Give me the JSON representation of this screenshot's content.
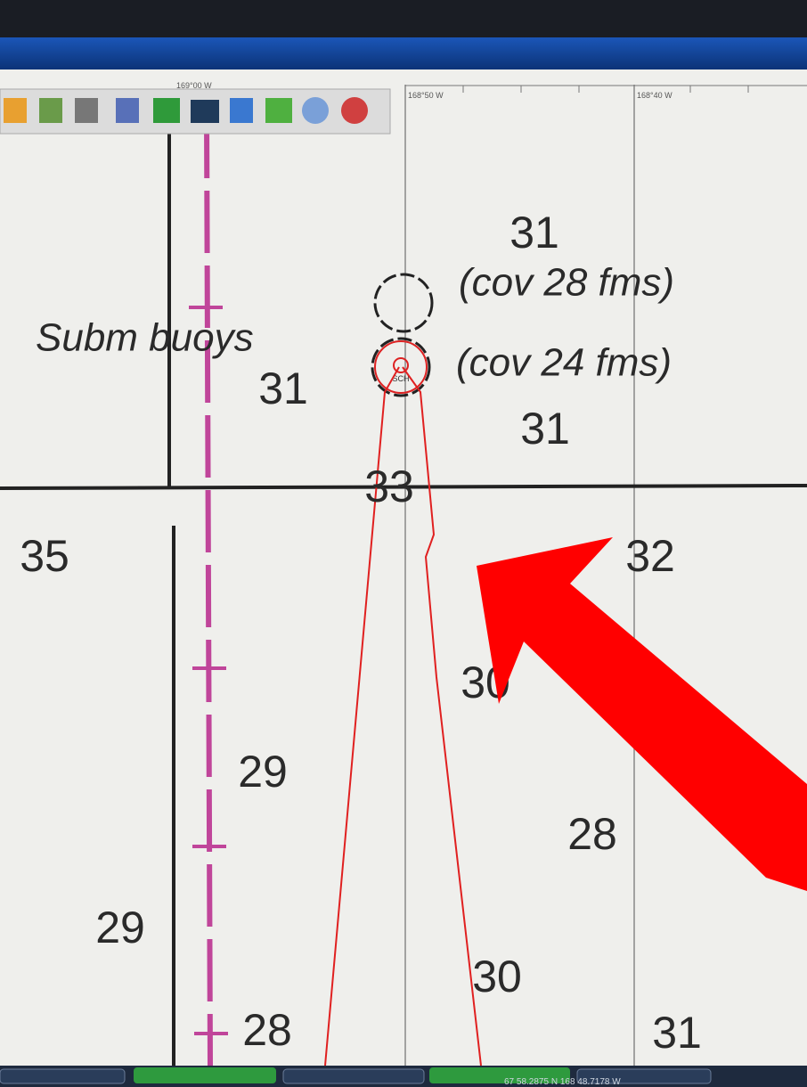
{
  "chart_labels": {
    "longitudes": [
      "169°00 W",
      "168°50 W",
      "168°40 W"
    ],
    "feature": "Subm buoys",
    "notes": [
      "(cov 28 fms)",
      "(cov 24 fms)"
    ],
    "symbol": "SCH"
  },
  "soundings": [
    "31",
    "31",
    "31",
    "33",
    "35",
    "32",
    "30",
    "29",
    "28",
    "29",
    "30",
    "28",
    "31"
  ],
  "status_bar": {
    "position": "67 58.2875 N  168 48.7178 W"
  }
}
